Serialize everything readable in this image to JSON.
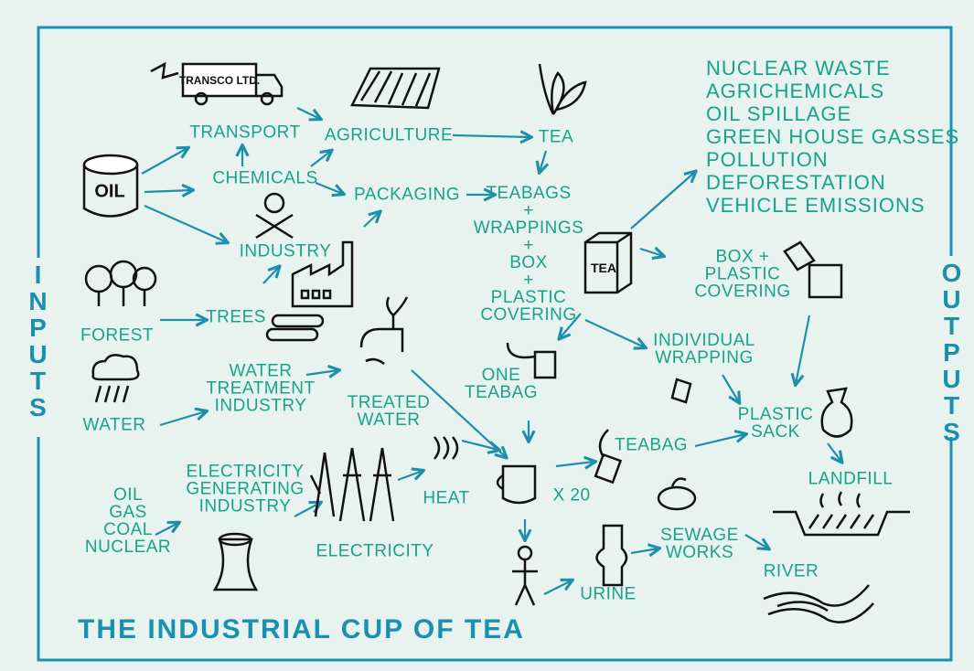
{
  "title": "THE INDUSTRIAL CUP OF TEA",
  "sides": {
    "inputs": "INPUTS",
    "outputs": "OUTPUTS"
  },
  "icon_labels": [
    "OIL",
    "TRANSCO LTD.",
    "TEA"
  ],
  "nodes": [
    {
      "lines": [
        "TRANSPORT"
      ]
    },
    {
      "lines": [
        "CHEMICALS"
      ]
    },
    {
      "lines": [
        "AGRICULTURE"
      ]
    },
    {
      "lines": [
        "TEA"
      ]
    },
    {
      "lines": [
        "INDUSTRY"
      ]
    },
    {
      "lines": [
        "PACKAGING"
      ]
    },
    {
      "lines": [
        "TEABAGS",
        "+",
        "WRAPPINGS",
        "+",
        "BOX",
        "+",
        "PLASTIC",
        "COVERING"
      ]
    },
    {
      "lines": [
        "FOREST"
      ]
    },
    {
      "lines": [
        "TREES"
      ]
    },
    {
      "lines": [
        "WATER"
      ]
    },
    {
      "lines": [
        "WATER",
        "TREATMENT",
        "INDUSTRY"
      ]
    },
    {
      "lines": [
        "TREATED",
        "WATER"
      ]
    },
    {
      "lines": [
        "ONE",
        "TEABAG"
      ]
    },
    {
      "lines": [
        "BOX +",
        "PLASTIC",
        "COVERING"
      ]
    },
    {
      "lines": [
        "INDIVIDUAL",
        "WRAPPING"
      ]
    },
    {
      "lines": [
        "PLASTIC",
        "SACK"
      ]
    },
    {
      "lines": [
        "LANDFILL"
      ]
    },
    {
      "lines": [
        "TEABAG"
      ]
    },
    {
      "lines": [
        "X 20"
      ]
    },
    {
      "lines": [
        "HEAT"
      ]
    },
    {
      "lines": [
        "ELECTRICITY",
        "GENERATING",
        "INDUSTRY"
      ]
    },
    {
      "lines": [
        "OIL",
        "GAS",
        "COAL",
        "NUCLEAR"
      ]
    },
    {
      "lines": [
        "ELECTRICITY"
      ]
    },
    {
      "lines": [
        "URINE"
      ]
    },
    {
      "lines": [
        "SEWAGE",
        "WORKS"
      ]
    },
    {
      "lines": [
        "RIVER"
      ]
    }
  ],
  "outputs_list": [
    "NUCLEAR WASTE",
    "AGRICHEMICALS",
    "OIL SPILLAGE",
    "GREEN HOUSE GASSES",
    "POLLUTION",
    "DEFORESTATION",
    "VEHICLE EMISSIONS"
  ]
}
